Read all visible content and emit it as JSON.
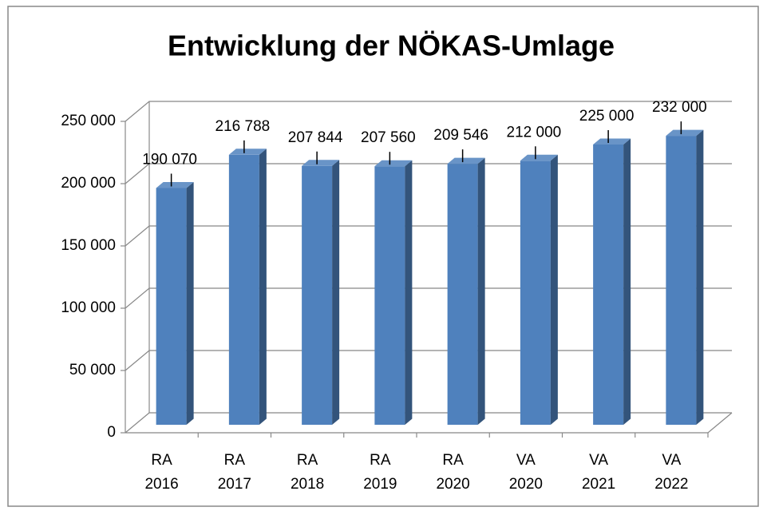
{
  "chart_data": {
    "type": "bar3d",
    "title": "Entwicklung der NÖKAS-Umlage",
    "categories": [
      [
        "RA",
        "2016"
      ],
      [
        "RA",
        "2017"
      ],
      [
        "RA",
        "2018"
      ],
      [
        "RA",
        "2019"
      ],
      [
        "RA",
        "2020"
      ],
      [
        "VA",
        "2020"
      ],
      [
        "VA",
        "2021"
      ],
      [
        "VA",
        "2022"
      ]
    ],
    "values": [
      190070,
      216788,
      207844,
      207560,
      209546,
      212000,
      225000,
      232000
    ],
    "value_labels": [
      "190 070",
      "216 788",
      "207 844",
      "207 560",
      "209 546",
      "212 000",
      "225 000",
      "232 000"
    ],
    "color": "#4f81bd",
    "ylim": [
      0,
      250000
    ],
    "yticks": [
      {
        "value": 0,
        "label": "0"
      },
      {
        "value": 50000,
        "label": "50 000"
      },
      {
        "value": 100000,
        "label": "100 000"
      },
      {
        "value": 150000,
        "label": "150 000"
      },
      {
        "value": 200000,
        "label": "200 000"
      },
      {
        "value": 250000,
        "label": "250 000"
      }
    ],
    "grid": true
  }
}
